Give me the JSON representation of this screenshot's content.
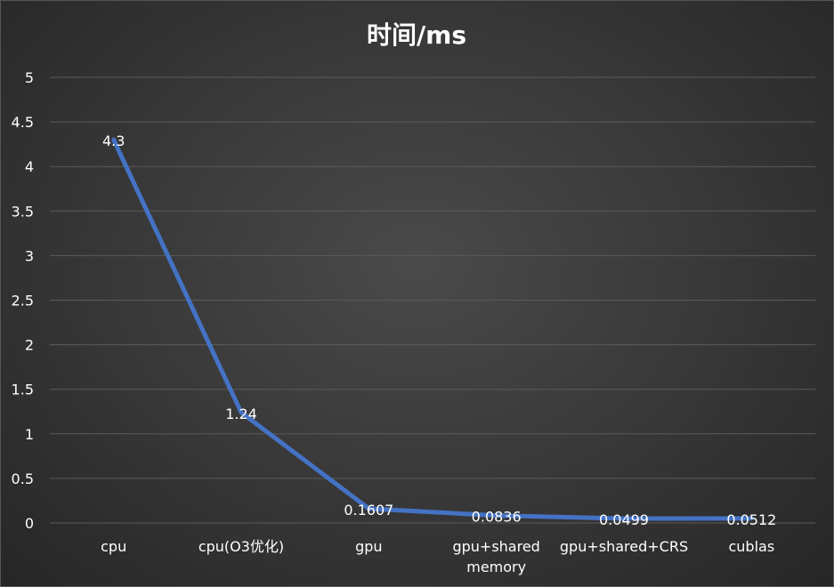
{
  "chart_data": {
    "type": "line",
    "title": "时间/ms",
    "xlabel": "",
    "ylabel": "",
    "categories": [
      [
        "cpu"
      ],
      [
        "cpu(O3优化)"
      ],
      [
        "gpu"
      ],
      [
        "gpu+shared",
        "memory"
      ],
      [
        "gpu+shared+CRS"
      ],
      [
        "cublas"
      ]
    ],
    "series": [
      {
        "values": [
          4.3,
          1.24,
          0.1607,
          0.0836,
          0.0499,
          0.0512
        ],
        "color": "#4472c4"
      }
    ],
    "data_labels": [
      "4.3",
      "1.24",
      "0.1607",
      "0.0836",
      "0.0499",
      "0.0512"
    ],
    "ylim": [
      0,
      5
    ],
    "yticks": [
      "0",
      "0.5",
      "1",
      "1.5",
      "2",
      "2.5",
      "3",
      "3.5",
      "4",
      "4.5",
      "5"
    ],
    "grid": true,
    "legend": "none"
  },
  "colors": {
    "line": "#4472c4",
    "text": "#ffffff",
    "grid": "#5b5b5b"
  }
}
